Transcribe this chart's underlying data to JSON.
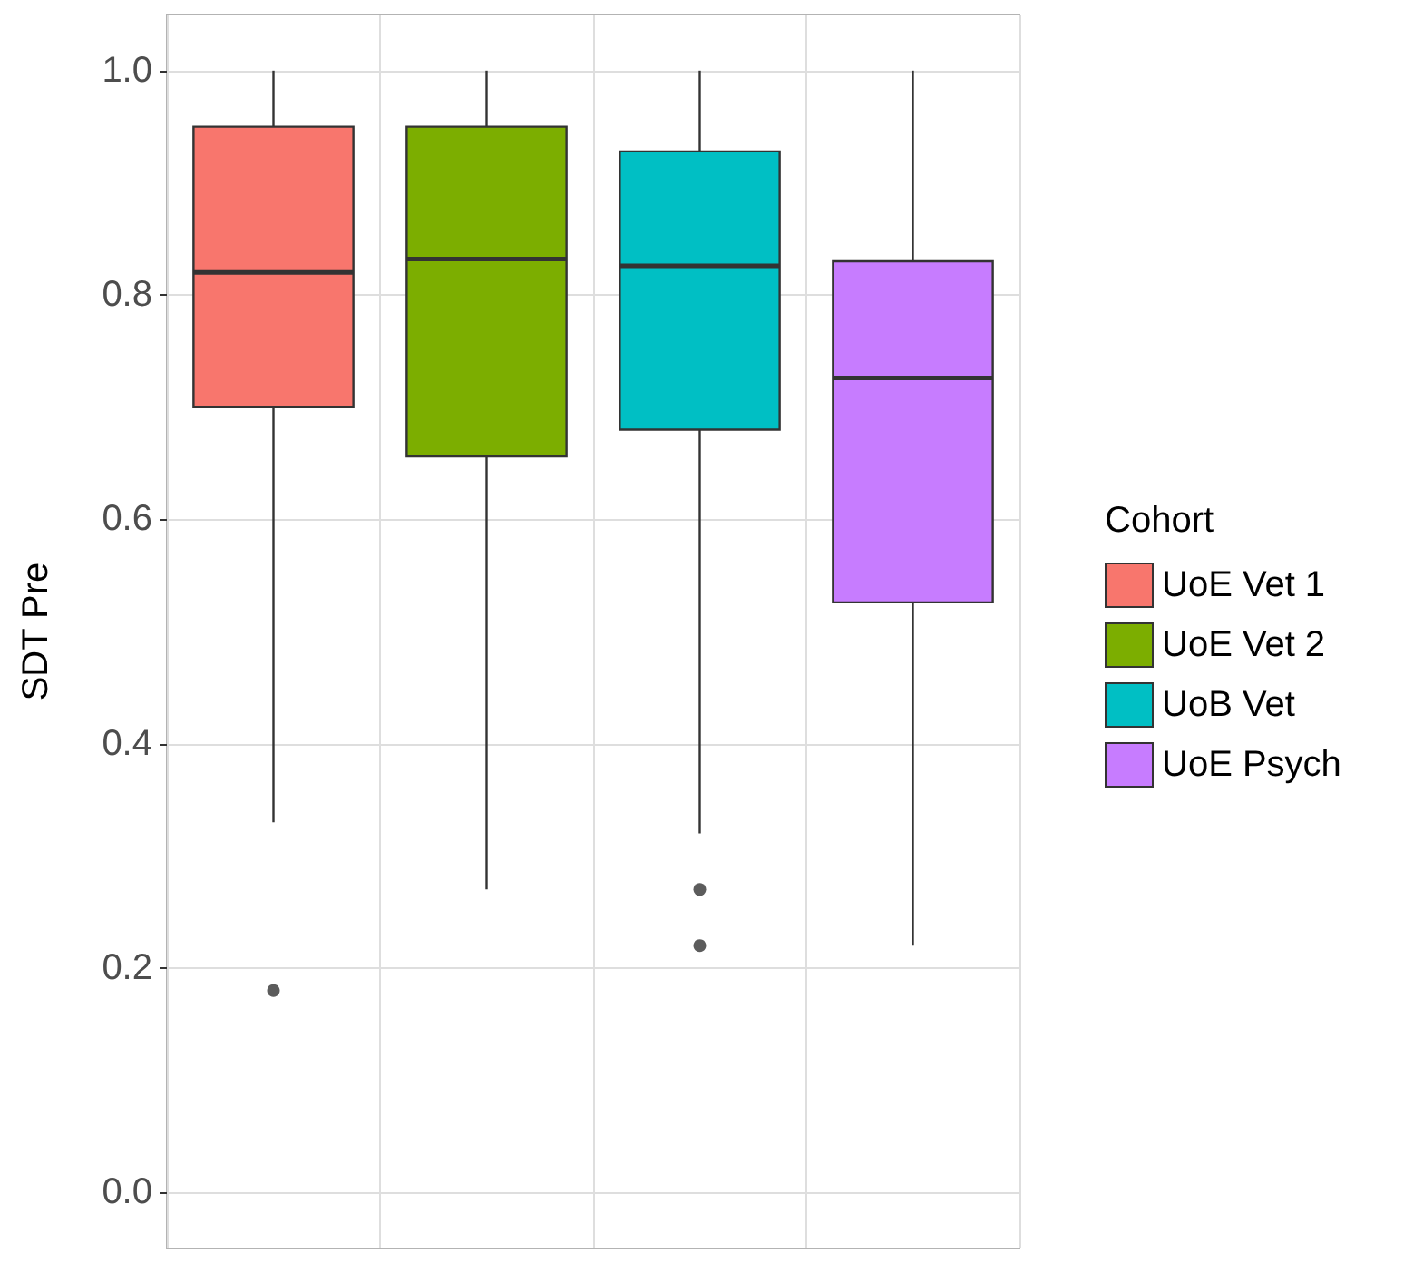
{
  "chart_data": {
    "type": "box",
    "ylabel": "SDT Pre",
    "legend_title": "Cohort",
    "legend": "right",
    "grid": true,
    "categories": [
      null,
      null,
      null,
      null
    ],
    "ylim": [
      -0.05,
      1.05
    ],
    "yticks": [
      {
        "value": 0,
        "label": "0.0"
      },
      {
        "value": 0.2,
        "label": "0.2"
      },
      {
        "value": 0.4,
        "label": "0.4"
      },
      {
        "value": 0.6,
        "label": "0.6"
      },
      {
        "value": 0.8,
        "label": "0.8"
      },
      {
        "value": 1,
        "label": "1.0"
      }
    ],
    "series": [
      {
        "name": "UoE Vet 1",
        "color": "#f8766d",
        "boxes": [
          {
            "low": 0.33,
            "q1": 0.7,
            "median": 0.82,
            "q3": 0.95,
            "high": 1.0,
            "outliers": [
              0.18
            ]
          },
          null,
          null,
          null
        ]
      },
      {
        "name": "UoE Vet 2",
        "color": "#7cae00",
        "boxes": [
          null,
          {
            "low": 0.27,
            "q1": 0.656,
            "median": 0.832,
            "q3": 0.95,
            "high": 1.0
          },
          null,
          null
        ]
      },
      {
        "name": "UoB Vet",
        "color": "#00bfc4",
        "boxes": [
          null,
          null,
          {
            "low": 0.32,
            "q1": 0.68,
            "median": 0.826,
            "q3": 0.928,
            "high": 1.0,
            "outliers": [
              0.27,
              0.22
            ]
          },
          null
        ]
      },
      {
        "name": "UoE Psych",
        "color": "#c77cff",
        "boxes": [
          null,
          null,
          null,
          {
            "low": 0.22,
            "q1": 0.526,
            "median": 0.726,
            "q3": 0.83,
            "high": 1.0
          }
        ]
      }
    ]
  }
}
